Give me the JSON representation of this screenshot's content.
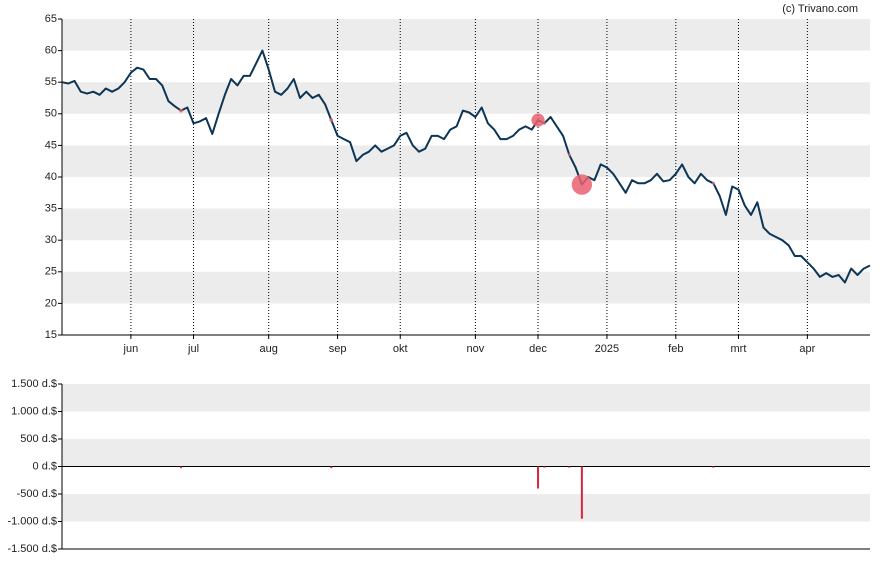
{
  "chart_data": [
    {
      "type": "line",
      "source": "(c) Trivano.com",
      "color": "#0c3556",
      "ylim": [
        15,
        65
      ],
      "yticks": [
        15,
        20,
        25,
        30,
        35,
        40,
        45,
        50,
        55,
        60,
        65
      ],
      "bands": true,
      "month_grid": true,
      "categories": [
        null,
        null,
        null,
        null,
        null,
        null,
        null,
        null,
        null,
        null,
        null,
        "jun",
        null,
        null,
        null,
        null,
        null,
        null,
        null,
        null,
        null,
        "jul",
        null,
        null,
        null,
        null,
        null,
        null,
        null,
        null,
        null,
        null,
        null,
        "aug",
        null,
        null,
        null,
        null,
        null,
        null,
        null,
        null,
        null,
        null,
        "sep",
        null,
        null,
        null,
        null,
        null,
        null,
        null,
        null,
        null,
        "okt",
        null,
        null,
        null,
        null,
        null,
        null,
        null,
        null,
        null,
        null,
        null,
        "nov",
        null,
        null,
        null,
        null,
        null,
        null,
        null,
        null,
        null,
        "dec",
        null,
        null,
        null,
        null,
        null,
        null,
        null,
        null,
        null,
        null,
        "2025",
        null,
        null,
        null,
        null,
        null,
        null,
        null,
        null,
        null,
        null,
        "feb",
        null,
        null,
        null,
        null,
        null,
        null,
        null,
        null,
        null,
        "mrt",
        null,
        null,
        null,
        null,
        null,
        null,
        null,
        null,
        null,
        null,
        "apr",
        null,
        null,
        null,
        null,
        null,
        null,
        null,
        null,
        null,
        null
      ],
      "values": [
        55,
        54.8,
        55.2,
        53.5,
        53.2,
        53.5,
        53,
        54,
        53.5,
        54,
        55,
        56.5,
        57.3,
        57,
        55.5,
        55.5,
        54.5,
        52,
        51.2,
        50.5,
        51,
        48.5,
        48.8,
        49.3,
        46.8,
        50,
        53,
        55.5,
        54.5,
        56,
        56,
        58,
        60,
        57,
        53.5,
        53,
        54,
        55.5,
        52.5,
        53.5,
        52.5,
        53,
        51.5,
        49,
        46.5,
        46,
        45.5,
        42.5,
        43.5,
        44,
        45,
        44,
        44.5,
        45,
        46.5,
        47,
        45,
        44,
        44.5,
        46.5,
        46.5,
        46,
        47.5,
        48,
        50.5,
        50.2,
        49.5,
        51,
        48.5,
        47.5,
        46,
        46,
        46.5,
        47.5,
        48,
        47.5,
        49,
        48.5,
        49.5,
        48,
        46.5,
        43.5,
        41.5,
        38.8,
        40,
        39.5,
        42,
        41.5,
        40.5,
        39,
        37.5,
        39.5,
        39,
        39,
        39.5,
        40.5,
        39.3,
        39.5,
        40.5,
        42,
        40,
        39,
        40.5,
        39.5,
        39,
        37,
        34,
        38.5,
        38,
        35.5,
        34,
        36,
        32,
        31,
        30.5,
        30,
        29.2,
        27.5,
        27.5,
        26.5,
        25.5,
        24.2,
        24.8,
        24.2,
        24.5,
        23.3,
        25.5,
        24.5,
        25.5,
        26
      ]
    },
    {
      "type": "bar",
      "color": "#d7263d",
      "marker_color": "#e8606f",
      "ylim": [
        -1500,
        1500
      ],
      "bands": true,
      "yticks": [
        {
          "value": -1500,
          "label": "-1.500 d.$"
        },
        {
          "value": -1000,
          "label": "-1.000 d.$"
        },
        {
          "value": -500,
          "label": "-500 d.$"
        },
        {
          "value": 0,
          "label": "0 d.$"
        },
        {
          "value": 500,
          "label": "500 d.$"
        },
        {
          "value": 1000,
          "label": "1.000 d.$"
        },
        {
          "value": 1500,
          "label": "1.500 d.$"
        }
      ],
      "categories": [
        null,
        null,
        null,
        null,
        null,
        null,
        null,
        null,
        null,
        null,
        null,
        null,
        null,
        null,
        null,
        null,
        null,
        null,
        null,
        null,
        null,
        null,
        null,
        null,
        null,
        null,
        null,
        null,
        null,
        null,
        null,
        null,
        null,
        null,
        null,
        null,
        null,
        null,
        null,
        null,
        null,
        null,
        null,
        null,
        null,
        null,
        null,
        null,
        null,
        null,
        null,
        null,
        null,
        null,
        null,
        null,
        null,
        null,
        null,
        null,
        null,
        null,
        null,
        null,
        null,
        null,
        null,
        null,
        null,
        null,
        null,
        null,
        null,
        null,
        null,
        null,
        null,
        null,
        null,
        null,
        null,
        null,
        null,
        null,
        null,
        null,
        null,
        null,
        null,
        null,
        null,
        null,
        null,
        null,
        null,
        null,
        null,
        null,
        null,
        null,
        null,
        null,
        null,
        null,
        null,
        null,
        null,
        null,
        null,
        null,
        null,
        null,
        null,
        null,
        null,
        null,
        null,
        null,
        null,
        null,
        null,
        null,
        null,
        null,
        null,
        null,
        null,
        null,
        null,
        null
      ],
      "values": [
        null,
        null,
        null,
        null,
        null,
        null,
        null,
        null,
        null,
        null,
        null,
        null,
        null,
        null,
        null,
        null,
        null,
        null,
        null,
        -30,
        null,
        null,
        null,
        null,
        null,
        null,
        null,
        null,
        null,
        null,
        null,
        null,
        null,
        null,
        null,
        null,
        null,
        null,
        null,
        null,
        null,
        null,
        null,
        -30,
        null,
        null,
        null,
        null,
        null,
        null,
        null,
        null,
        null,
        null,
        null,
        null,
        null,
        null,
        null,
        null,
        null,
        null,
        null,
        null,
        null,
        null,
        null,
        null,
        null,
        null,
        null,
        null,
        null,
        null,
        null,
        null,
        -400,
        -20,
        null,
        null,
        null,
        -20,
        null,
        -950,
        null,
        null,
        null,
        null,
        null,
        null,
        null,
        null,
        null,
        null,
        null,
        null,
        null,
        null,
        null,
        null,
        null,
        null,
        null,
        null,
        -20,
        null,
        null,
        null,
        null,
        null,
        null,
        null,
        null,
        null,
        null,
        null,
        null,
        null,
        null,
        null,
        null,
        null,
        null,
        null,
        null,
        null,
        null,
        null,
        null,
        null
      ]
    }
  ]
}
